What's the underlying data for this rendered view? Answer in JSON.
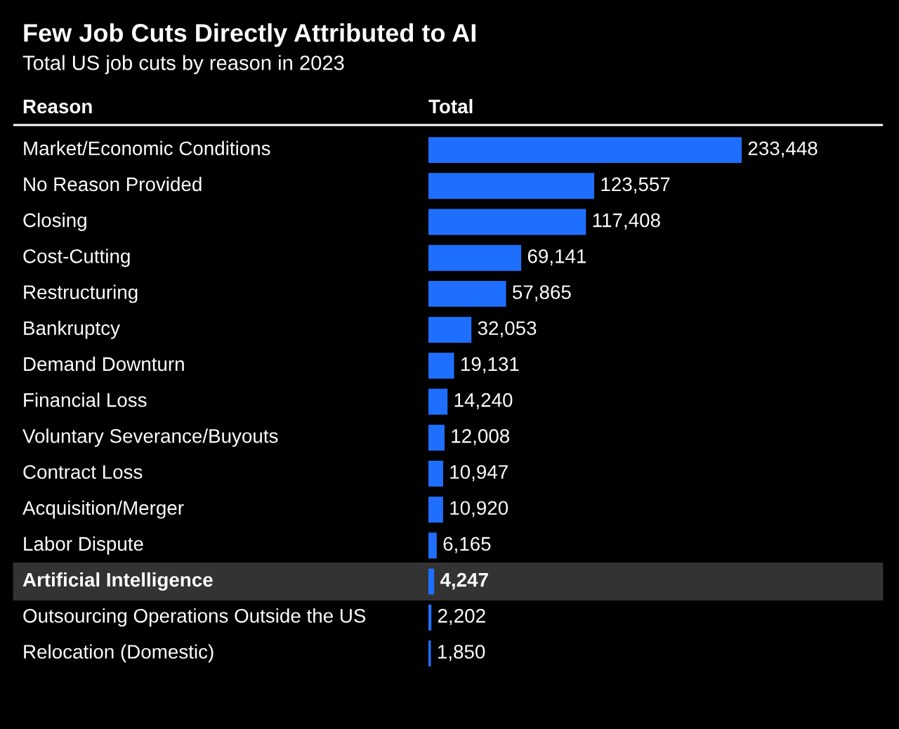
{
  "chart_data": {
    "type": "bar",
    "orientation": "horizontal",
    "title": "Few Job Cuts Directly Attributed to AI",
    "subtitle": "Total US job cuts by reason in 2023",
    "ylabel": "Reason",
    "xlabel": "Total",
    "categories": [
      "Market/Economic Conditions",
      "No Reason Provided",
      "Closing",
      "Cost-Cutting",
      "Restructuring",
      "Bankruptcy",
      "Demand Downturn",
      "Financial Loss",
      "Voluntary Severance/Buyouts",
      "Contract Loss",
      "Acquisition/Merger",
      "Labor Dispute",
      "Artificial Intelligence",
      "Outsourcing Operations Outside the US",
      "Relocation (Domestic)"
    ],
    "values": [
      233448,
      123557,
      117408,
      69141,
      57865,
      32053,
      19131,
      14240,
      12008,
      10947,
      10920,
      6165,
      4247,
      2202,
      1850
    ],
    "value_labels": [
      "233,448",
      "123,557",
      "117,408",
      "69,141",
      "57,865",
      "32,053",
      "19,131",
      "14,240",
      "12,008",
      "10,947",
      "10,920",
      "6,165",
      "4,247",
      "2,202",
      "1,850"
    ],
    "color": "#1f6fff",
    "bands": [
      {
        "axis": "y",
        "from": "Artificial Intelligence",
        "to": "Artificial Intelligence",
        "color": "#333333"
      }
    ],
    "legend": false
  }
}
